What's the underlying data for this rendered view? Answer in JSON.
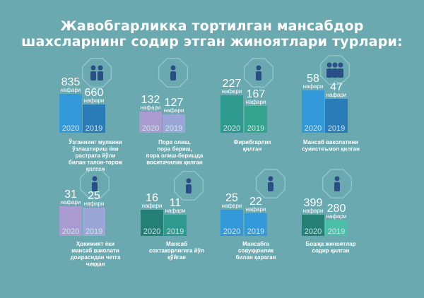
{
  "title": {
    "line1": "Жавобгарликка тортилган мансабдор",
    "line2": "шахсларнинг содир этган жиноятлари турлари:"
  },
  "unit": "нафари",
  "colors": {
    "background": "#6ba9b1",
    "blue": "#3399d9",
    "darkblue": "#2a7cb8",
    "violet": "#a99ad0",
    "lavender": "#9aa7d6",
    "teal": "#2e9a8e",
    "darkteal": "#247f75",
    "lightteal": "#4cbfa8",
    "green": "#34a58c"
  },
  "chart_data": {
    "type": "bar",
    "series_labels": [
      "2020",
      "2019"
    ],
    "groups": [
      {
        "label": [
          "Ўзганнинг мулкини",
          "ўзлаштириш ёки",
          "растрата йўли",
          "билан талон-торож",
          "қилган"
        ],
        "values": [
          835,
          660
        ],
        "icon": "people-icon"
      },
      {
        "label": [
          "Пора олиш,",
          "пора бериш,",
          "пора олиш-беришда",
          "воситачилик қилган"
        ],
        "values": [
          132,
          127
        ],
        "icon": "handshake-money-icon"
      },
      {
        "label": [
          "Фирибгарлик",
          "қилган"
        ],
        "values": [
          227,
          167
        ],
        "icon": "fraud-icon"
      },
      {
        "label": [
          "Мансаб ваколатини",
          "суиистеъмол қилган"
        ],
        "values": [
          58,
          47
        ],
        "icon": "crowd-icon"
      },
      {
        "label": [
          "Ҳокимият ёки",
          "мансаб ваколати",
          "доирасидан четга",
          "чиққан"
        ],
        "values": [
          31,
          25
        ],
        "icon": "pointing-hand-icon"
      },
      {
        "label": [
          "Мансаб",
          "сохтакорлигига йўл",
          "қўйган"
        ],
        "values": [
          16,
          11
        ],
        "icon": "official-icon"
      },
      {
        "label": [
          "Мансабга",
          "совуққонлик",
          "билан қараган"
        ],
        "values": [
          25,
          22
        ],
        "icon": "shopping-person-icon"
      },
      {
        "label": [
          "Бошқа жиноятлар",
          "содир қилган"
        ],
        "values": [
          399,
          280
        ],
        "icon": "police-document-icon"
      }
    ]
  }
}
